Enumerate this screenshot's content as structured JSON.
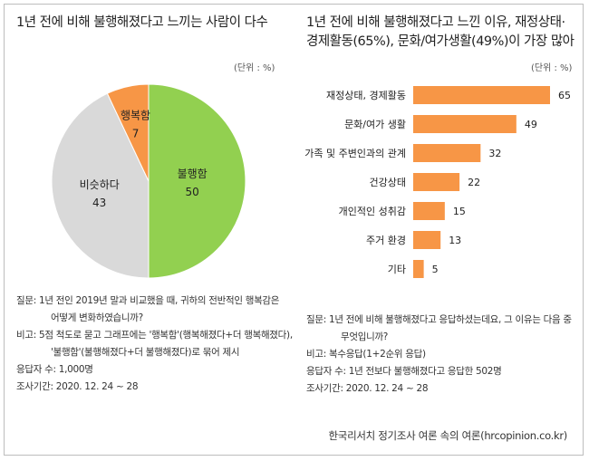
{
  "left": {
    "title": "1년 전에 비해 불행해졌다고 느끼는 사람이 다수",
    "unit": "(단위 : %)",
    "notes": [
      "질문: 1년 전인 2019년 말과 비교했을 때, 귀하의 전반적인 행복감은",
      "어떻게 변화하였습니까?",
      "비고: 5점 척도로 묻고 그래프에는 '행복함'(행복해졌다+더 행복해졌다),",
      "'불행함'(불행해졌다+더 불행해졌다)로 묶어 제시",
      "응답자 수: 1,000명",
      "조사기간: 2020. 12. 24 ~ 28"
    ]
  },
  "right": {
    "title_line1": "1년 전에 비해 불행해졌다고 느낀 이유, 재정상태·",
    "title_line2": "경제활동(65%), 문화/여가생활(49%)이 가장 많아",
    "unit": "(단위 : %)",
    "notes": [
      "질문: 1년 전에 비해 불행해졌다고 응답하셨는데요, 그 이유는 다음 중",
      "무엇입니까?",
      "비고: 복수응답(1+2순위 응답)",
      "응답자 수: 1년 전보다 불행해졌다고 응답한 502명",
      "조사기간: 2020. 12. 24 ~ 28"
    ]
  },
  "footer": "한국리서치 정기조사 여론 속의 여론(hrcopinion.co.kr)",
  "chart_data": [
    {
      "type": "pie",
      "categories": [
        "불행함",
        "비슷하다",
        "행복함"
      ],
      "values": [
        50,
        43,
        7
      ],
      "colors": [
        "#92d050",
        "#d9d9d9",
        "#f79646"
      ]
    },
    {
      "type": "bar",
      "orientation": "horizontal",
      "categories": [
        "재정상태, 경제활동",
        "문화/여가 생활",
        "가족 및 주변인과의 관계",
        "건강상태",
        "개인적인 성취감",
        "주거 환경",
        "기타"
      ],
      "values": [
        65,
        49,
        32,
        22,
        15,
        13,
        5
      ],
      "xlim": [
        0,
        65
      ],
      "color": "#f79646"
    }
  ]
}
